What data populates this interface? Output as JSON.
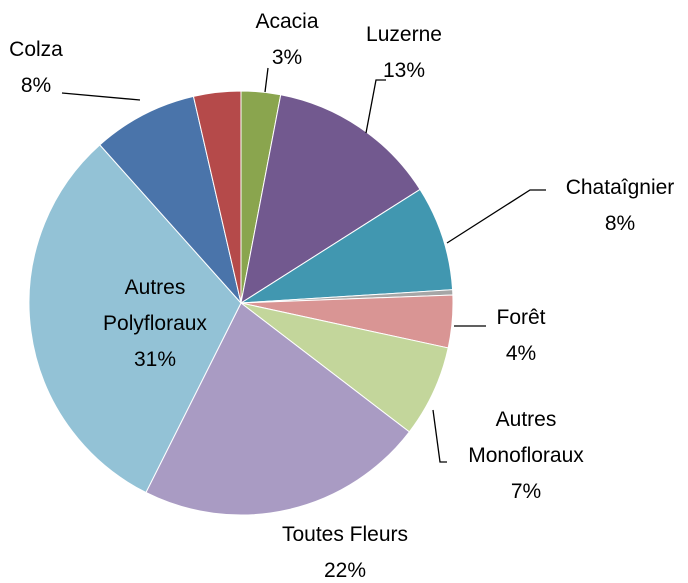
{
  "chart_data": {
    "type": "pie",
    "categories": [
      "Acacia",
      "Luzerne",
      "Chataîgnier",
      null,
      "Forêt",
      "Autres\nMonofloraux",
      "Toutes Fleurs",
      "Autres\nPolyfloraux",
      "Colza",
      null
    ],
    "values": [
      3,
      13,
      8,
      0.4,
      4,
      7,
      22,
      31,
      8,
      3.6
    ],
    "value_labels": [
      "3%",
      "13%",
      "8%",
      null,
      "4%",
      "7%",
      "22%",
      "31%",
      "8%",
      null
    ],
    "colors": [
      "#8aa54e",
      "#72598f",
      "#4197b0",
      "#a6a6a6",
      "#d99594",
      "#c3d69b",
      "#a99bc3",
      "#93c2d6",
      "#4a74aa",
      "#b54a4a"
    ]
  }
}
